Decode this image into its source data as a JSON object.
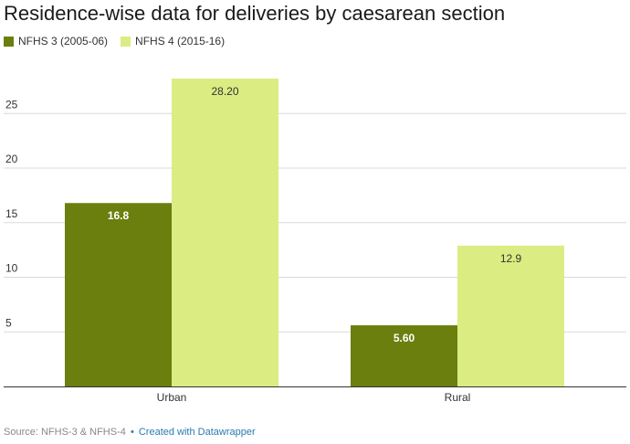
{
  "title": "Residence-wise data for deliveries by caesarean section",
  "footer": {
    "source": "Source: NFHS-3 & NFHS-4",
    "separator": "•",
    "credit": "Created with Datawrapper"
  },
  "colors": {
    "series1": "#6a7f0e",
    "series2": "#dbec82",
    "grid": "#d9d9d9",
    "axis": "#333333",
    "credit_link": "#2a7ab0"
  },
  "chart_data": {
    "type": "bar",
    "categories": [
      "Urban",
      "Rural"
    ],
    "series": [
      {
        "name": "NFHS 3 (2005-06)",
        "values": [
          16.8,
          5.6
        ],
        "labels": [
          "16.8",
          "5.60"
        ]
      },
      {
        "name": "NFHS 4 (2015-16)",
        "values": [
          28.2,
          12.9
        ],
        "labels": [
          "28.20",
          "12.9"
        ]
      }
    ],
    "yticks": [
      5,
      10,
      15,
      20,
      25
    ],
    "ylim": [
      0,
      30
    ],
    "xlabel": "",
    "ylabel": "",
    "grid": true,
    "legend": "top-left"
  }
}
